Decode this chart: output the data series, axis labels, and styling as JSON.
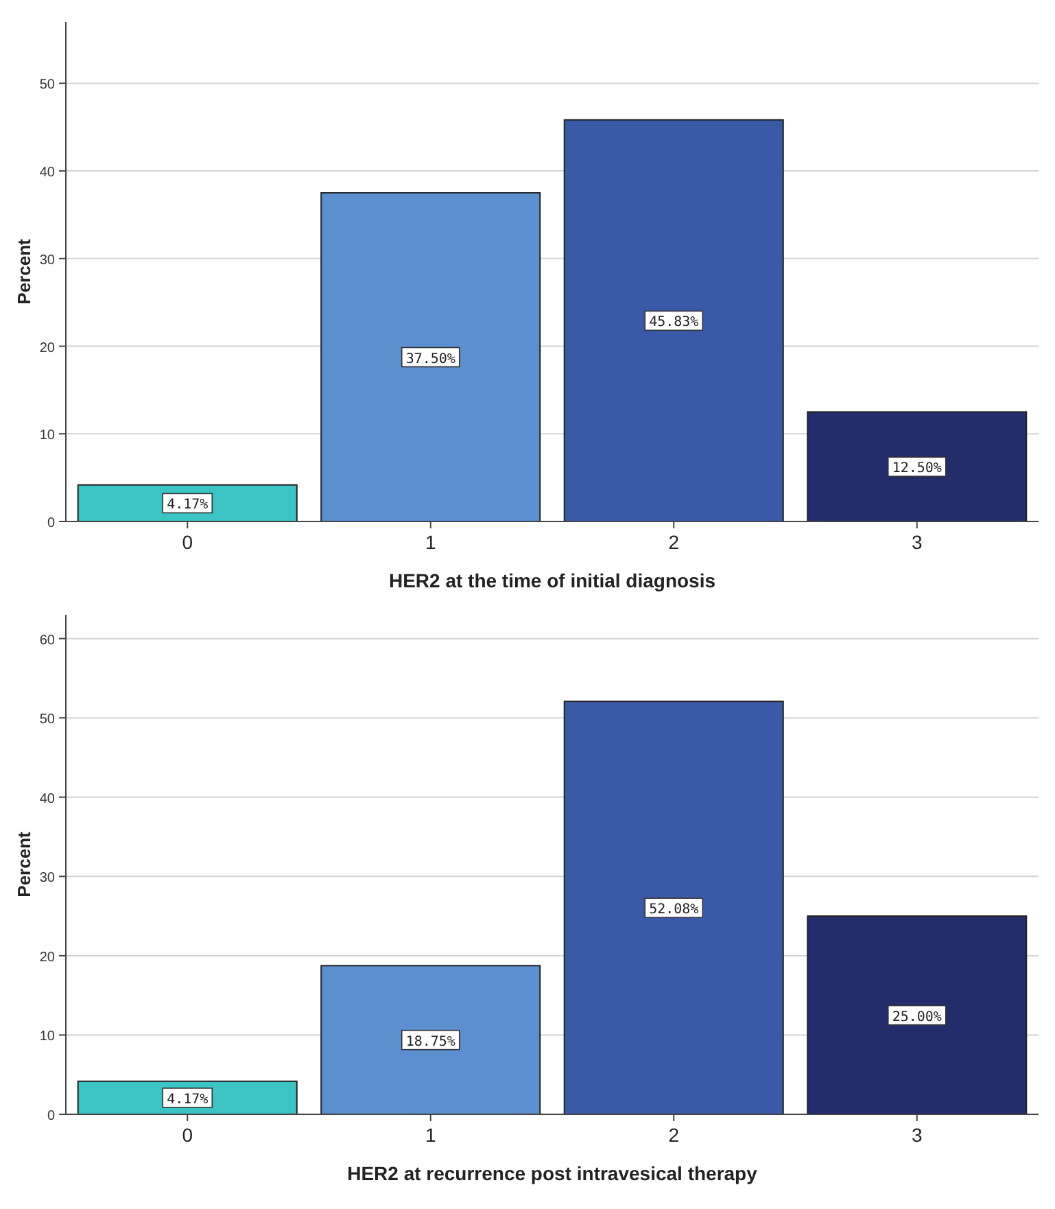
{
  "chart_data": [
    {
      "type": "bar",
      "xlabel": "HER2 at the time of initial diagnosis",
      "ylabel": "Percent",
      "categories": [
        "0",
        "1",
        "2",
        "3"
      ],
      "values": [
        4.17,
        37.5,
        45.83,
        12.5
      ],
      "colors": [
        "#3cc3c3",
        "#5b8fcf",
        "#3a5aa8",
        "#232d6b"
      ],
      "value_labels": [
        "4.17%",
        "37.50%",
        "45.83%",
        "12.50%"
      ],
      "ylim": [
        0,
        57
      ],
      "yticks": [
        0,
        10,
        20,
        30,
        40,
        50
      ],
      "grid": "y"
    },
    {
      "type": "bar",
      "xlabel": "HER2 at recurrence post intravesical therapy",
      "ylabel": "Percent",
      "categories": [
        "0",
        "1",
        "2",
        "3"
      ],
      "values": [
        4.17,
        18.75,
        52.08,
        25.0
      ],
      "colors": [
        "#3cc3c3",
        "#5b8fcf",
        "#3a5aa8",
        "#232d6b"
      ],
      "value_labels": [
        "4.17%",
        "18.75%",
        "52.08%",
        "25.00%"
      ],
      "ylim": [
        0,
        63
      ],
      "yticks": [
        0,
        10,
        20,
        30,
        40,
        50,
        60
      ],
      "grid": "y"
    }
  ]
}
